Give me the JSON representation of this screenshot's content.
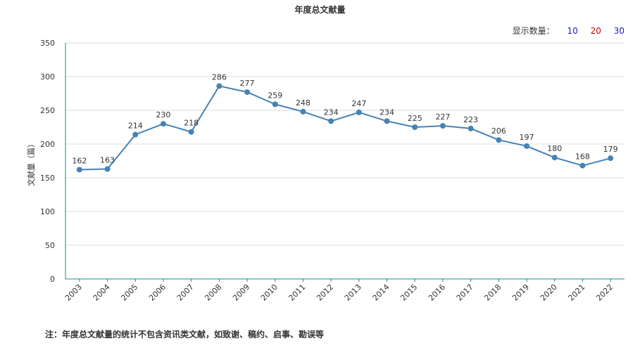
{
  "colors": {
    "line": "#4682b4",
    "axis": "#1b8a8a",
    "grid": "#dddddd",
    "opt10": "#1a1acc",
    "opt20": "#cc0000",
    "opt30": "#1a1acc"
  },
  "display_count": {
    "label": "显示数量",
    "separator": "：",
    "options": [
      "10",
      "20",
      "30"
    ]
  },
  "footnote": "注：年度总文献量的统计不包含资讯类文献，如致谢、稿约、启事、勘误等",
  "chart_data": {
    "type": "line",
    "title": "年度总文献量",
    "xlabel": "",
    "ylabel": "文献量（篇）",
    "ylim": [
      0,
      350
    ],
    "yticks": [
      0,
      50,
      100,
      150,
      200,
      250,
      300,
      350
    ],
    "grid": true,
    "categories": [
      "2003",
      "2004",
      "2005",
      "2006",
      "2007",
      "2008",
      "2009",
      "2010",
      "2011",
      "2012",
      "2013",
      "2014",
      "2015",
      "2016",
      "2017",
      "2018",
      "2019",
      "2020",
      "2021",
      "2022"
    ],
    "series": [
      {
        "values": [
          162,
          163,
          214,
          230,
          218,
          286,
          277,
          259,
          248,
          234,
          247,
          234,
          225,
          227,
          223,
          206,
          197,
          180,
          168,
          179
        ]
      }
    ]
  }
}
